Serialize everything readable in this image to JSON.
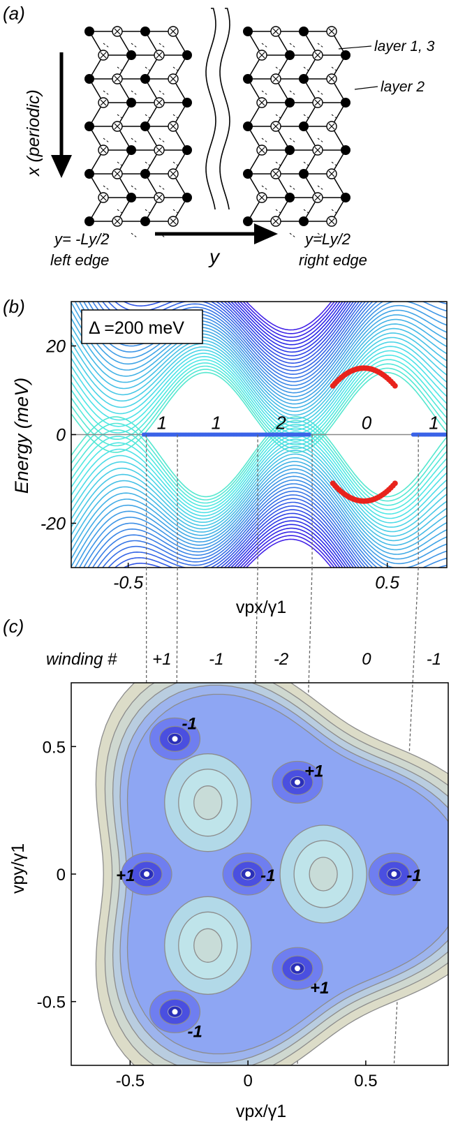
{
  "panel_a": {
    "label": "(a)",
    "axis_x_label": "x (periodic)",
    "axis_y_label": "y",
    "left_edge_line1": "y= -Ly/2",
    "left_edge_line2": "left edge",
    "right_edge_line1": "y=Ly/2",
    "right_edge_line2": "right edge",
    "legend_layers_13": "layer 1, 3",
    "legend_layer_2": "layer 2"
  },
  "panel_b": {
    "label": "(b)",
    "annotation": "Δ =200 meV",
    "chart_data": {
      "type": "line",
      "title": "",
      "xlabel": "vpx/γ1",
      "ylabel": "Energy (meV)",
      "xlim": [
        -0.72,
        0.73
      ],
      "ylim": [
        -30,
        30
      ],
      "x_ticks": [
        "-0.5",
        "0.5"
      ],
      "y_ticks": [
        "20",
        "0",
        "-20"
      ],
      "zero_mode_intervals": [
        [
          -0.44,
          -0.31
        ],
        [
          -0.31,
          0.0
        ],
        [
          0.0,
          0.2
        ],
        [
          0.6,
          0.73
        ]
      ],
      "region_counts": [
        {
          "x": -0.37,
          "label": "1"
        },
        {
          "x": -0.16,
          "label": "1"
        },
        {
          "x": 0.09,
          "label": "2"
        },
        {
          "x": 0.42,
          "label": "0"
        },
        {
          "x": 0.68,
          "label": "1"
        }
      ],
      "edge_state_arc": {
        "x_range": [
          0.29,
          0.53
        ],
        "energy_min": 11,
        "energy_max": 15
      }
    }
  },
  "panel_c": {
    "label": "(c)",
    "winding_title": "winding #",
    "winding_values": [
      "+1",
      "-1",
      "-2",
      "0",
      "-1"
    ],
    "chart_data": {
      "type": "contour",
      "xlabel": "vpx/γ1",
      "ylabel": "vpy/γ1",
      "xlim": [
        -0.75,
        0.85
      ],
      "ylim": [
        -0.75,
        0.75
      ],
      "x_ticks": [
        "-0.5",
        "0",
        "0.5"
      ],
      "y_ticks": [
        "0.5",
        "0",
        "-0.5"
      ],
      "dirac_points": [
        {
          "x": -0.31,
          "y": 0.53,
          "winding": "-1"
        },
        {
          "x": -0.31,
          "y": -0.54,
          "winding": "-1"
        },
        {
          "x": -0.43,
          "y": 0.0,
          "winding": "+1"
        },
        {
          "x": 0.21,
          "y": 0.36,
          "winding": "+1"
        },
        {
          "x": 0.21,
          "y": -0.37,
          "winding": "+1"
        },
        {
          "x": 0.0,
          "y": 0.0,
          "winding": "-1"
        },
        {
          "x": 0.62,
          "y": 0.0,
          "winding": "-1"
        }
      ],
      "local_maxima": [
        [
          -0.17,
          0.28
        ],
        [
          -0.17,
          -0.28
        ],
        [
          0.32,
          0.0
        ]
      ],
      "guide_lines_x": [
        -0.43,
        -0.31,
        0.0,
        0.21,
        0.62
      ]
    }
  }
}
